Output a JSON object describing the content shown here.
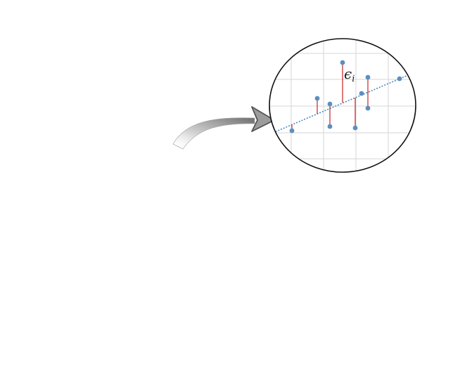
{
  "diagram": {
    "annotation": {
      "text": "ϵ",
      "subscript": "i"
    },
    "colors": {
      "point": "#5b8fc0",
      "residual": "#cc2222",
      "fit_line": "#4a8ac0",
      "grid": "#d6d6d6",
      "lens_border": "#111111",
      "arrow_fill": "#8a8a8a"
    },
    "icons": [
      "curved-arrow-icon",
      "magnifier-lens"
    ]
  }
}
